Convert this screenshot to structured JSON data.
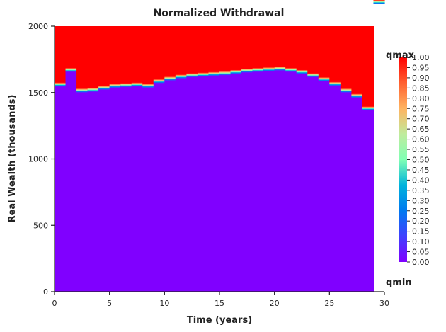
{
  "chart_data": {
    "type": "heatmap",
    "title": "Normalized Withdrawal",
    "xlabel": "Time (years)",
    "ylabel": "Real Wealth (thousands)",
    "xlim": [
      0,
      30
    ],
    "ylim": [
      0,
      2000
    ],
    "xticks": [
      0,
      5,
      10,
      15,
      20,
      25,
      30
    ],
    "yticks": [
      0,
      500,
      1000,
      1500,
      2000
    ],
    "x_edges": [
      0,
      1,
      2,
      3,
      4,
      5,
      6,
      7,
      8,
      9,
      10,
      11,
      12,
      13,
      14,
      15,
      16,
      17,
      18,
      19,
      20,
      21,
      22,
      23,
      24,
      25,
      26,
      27,
      28,
      29
    ],
    "threshold_wealth": [
      1560,
      1670,
      1515,
      1520,
      1535,
      1550,
      1555,
      1560,
      1550,
      1585,
      1605,
      1620,
      1630,
      1635,
      1640,
      1645,
      1655,
      1665,
      1670,
      1675,
      1680,
      1670,
      1655,
      1630,
      1600,
      1565,
      1515,
      1475,
      1380
    ],
    "value_below_threshold": 0.0,
    "value_above_threshold": 1.0,
    "colormap": "rainbow",
    "colorbar": {
      "top_label": "qmax",
      "bottom_label": "qmin",
      "ticks": [
        "0.00",
        "0.05",
        "0.10",
        "0.15",
        "0.20",
        "0.25",
        "0.30",
        "0.35",
        "0.40",
        "0.45",
        "0.50",
        "0.55",
        "0.60",
        "0.65",
        "0.70",
        "0.75",
        "0.80",
        "0.85",
        "0.90",
        "0.95",
        "1.00"
      ]
    },
    "grid": false
  }
}
